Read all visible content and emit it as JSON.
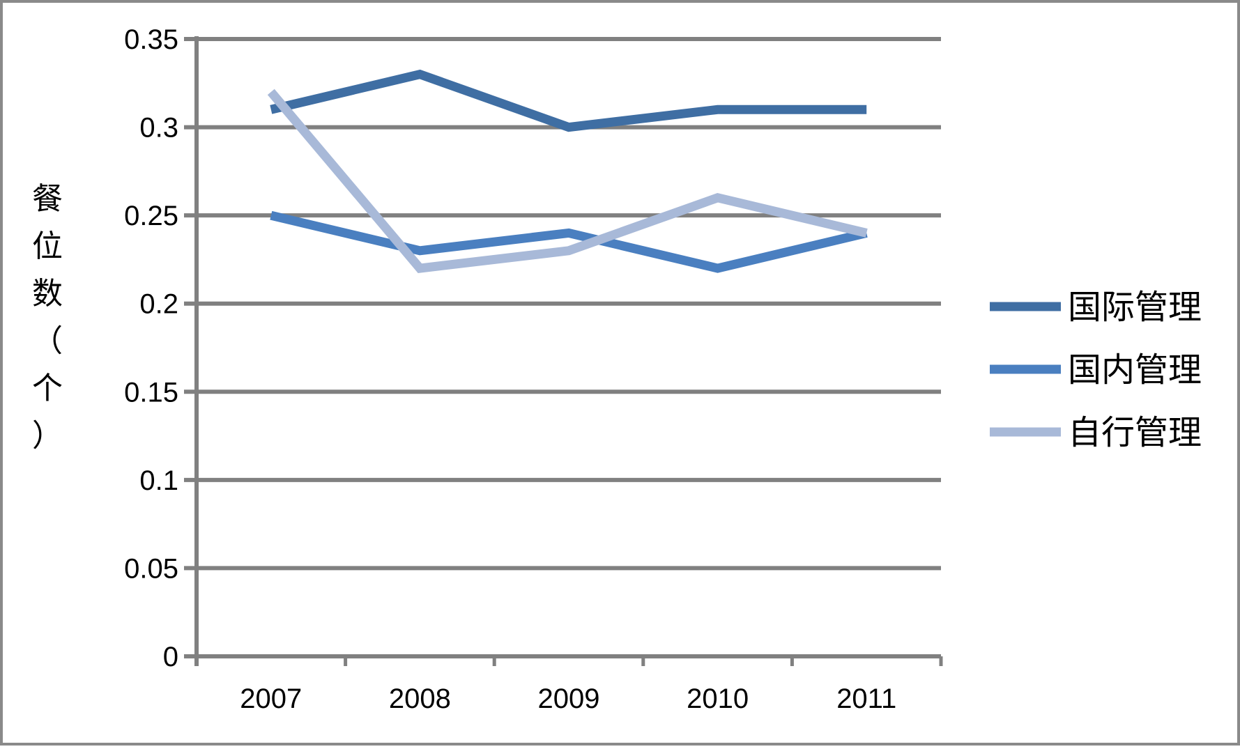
{
  "chart_data": {
    "type": "line",
    "title": "",
    "xlabel": "",
    "ylabel": "餐位数（个）",
    "categories": [
      "2007",
      "2008",
      "2009",
      "2010",
      "2011"
    ],
    "yticks": [
      "0",
      "0.05",
      "0.1",
      "0.15",
      "0.2",
      "0.25",
      "0.3",
      "0.35"
    ],
    "ylim": [
      0,
      0.35
    ],
    "grid": true,
    "legend_position": "right",
    "series": [
      {
        "name": "国际管理",
        "values": [
          0.31,
          0.33,
          0.3,
          0.31,
          0.31
        ],
        "color": "#3f6ea3"
      },
      {
        "name": "国内管理",
        "values": [
          0.25,
          0.23,
          0.24,
          0.22,
          0.24
        ],
        "color": "#4a7fc0"
      },
      {
        "name": "自行管理",
        "values": [
          0.32,
          0.22,
          0.23,
          0.26,
          0.24
        ],
        "color": "#a8b9d8"
      }
    ]
  },
  "colors": {
    "frame": "#8a8a8a",
    "gridline": "#808080",
    "axis": "#808080",
    "text": "#000000"
  }
}
